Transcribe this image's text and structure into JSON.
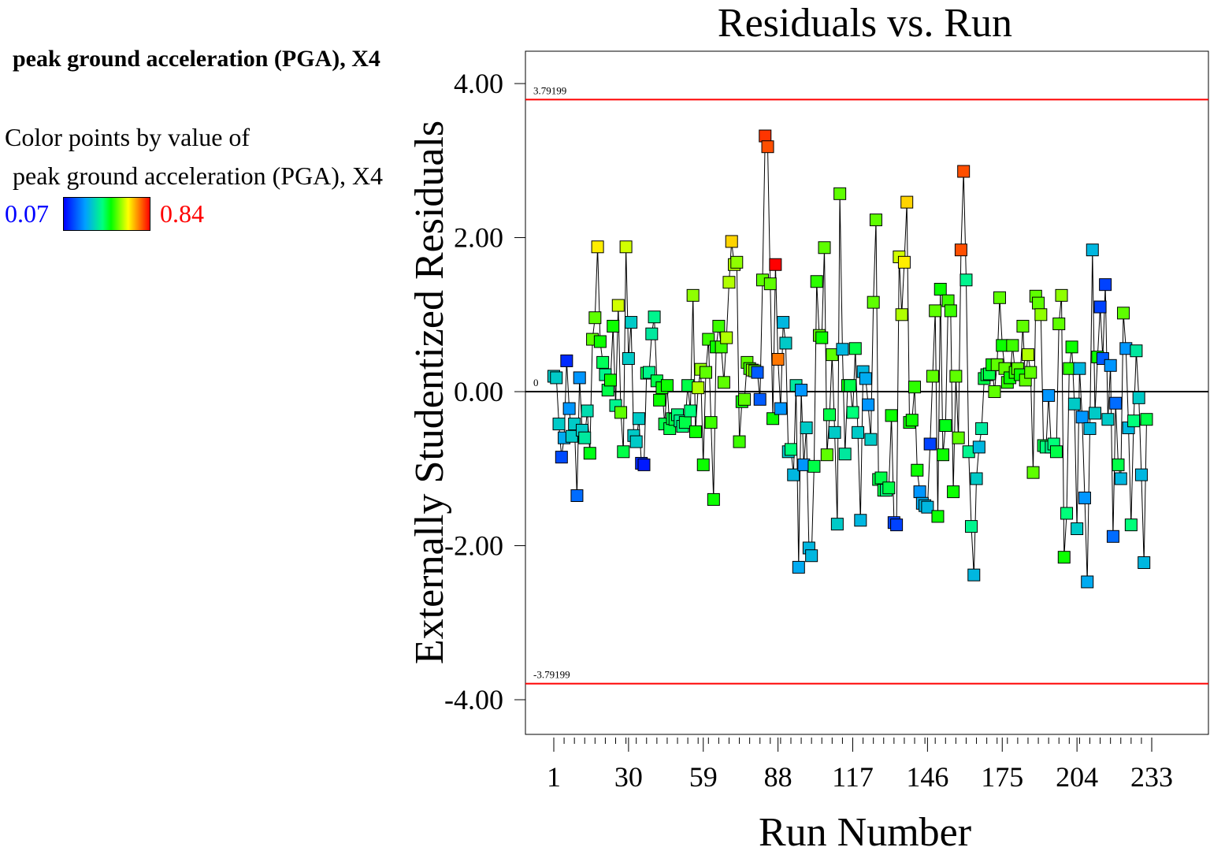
{
  "sidebar": {
    "title": "peak ground acceleration (PGA), X4",
    "color_by_label": "Color points by value of",
    "color_by_variable": "peak ground acceleration (PGA), X4",
    "legend_min": "0.07",
    "legend_max": "0.84",
    "legend_min_color": "#0000ff",
    "legend_max_color": "#ff0000"
  },
  "chart_data": {
    "type": "scatter",
    "title": "Residuals vs. Run",
    "xlabel": "Run Number",
    "ylabel": "Externally Studentized Residuals",
    "xlim": [
      -10,
      255
    ],
    "ylim": [
      -4.45,
      4.42
    ],
    "x_ticks": [
      1,
      30,
      59,
      88,
      117,
      146,
      175,
      204,
      233
    ],
    "y_ticks": [
      {
        "value": 4,
        "label": "4.00"
      },
      {
        "value": 2,
        "label": "2.00"
      },
      {
        "value": 0,
        "label": "0.00"
      },
      {
        "value": -2,
        "label": "-2.00"
      },
      {
        "value": -4,
        "label": "-4.00"
      }
    ],
    "reference_lines": [
      {
        "value": 3.79199,
        "label": "3.79199",
        "color": "#ff0000"
      },
      {
        "value": -3.79199,
        "label": "-3.79199",
        "color": "#ff0000"
      },
      {
        "value": 0,
        "label": "0",
        "color": "#000000"
      }
    ],
    "color_range": [
      0.07,
      0.84
    ],
    "series": [
      {
        "name": "residuals",
        "points": [
          [
            1,
            0.2,
            0.33
          ],
          [
            2,
            0.18,
            0.33
          ],
          [
            3,
            -0.42,
            0.33
          ],
          [
            4,
            -0.85,
            0.16
          ],
          [
            5,
            -0.6,
            0.28
          ],
          [
            6,
            0.4,
            0.12
          ],
          [
            7,
            -0.22,
            0.25
          ],
          [
            8,
            -0.58,
            0.33
          ],
          [
            9,
            -0.42,
            0.33
          ],
          [
            10,
            -1.35,
            0.2
          ],
          [
            11,
            0.18,
            0.25
          ],
          [
            12,
            -0.5,
            0.33
          ],
          [
            13,
            -0.6,
            0.38
          ],
          [
            14,
            -0.25,
            0.36
          ],
          [
            15,
            -0.8,
            0.48
          ],
          [
            16,
            0.68,
            0.55
          ],
          [
            17,
            0.96,
            0.55
          ],
          [
            18,
            1.88,
            0.66
          ],
          [
            19,
            0.65,
            0.5
          ],
          [
            20,
            0.38,
            0.44
          ],
          [
            21,
            0.22,
            0.4
          ],
          [
            22,
            0.02,
            0.45
          ],
          [
            23,
            0.15,
            0.5
          ],
          [
            24,
            0.85,
            0.5
          ],
          [
            25,
            -0.18,
            0.4
          ],
          [
            26,
            1.12,
            0.62
          ],
          [
            27,
            -0.27,
            0.55
          ],
          [
            28,
            -0.78,
            0.45
          ],
          [
            29,
            1.88,
            0.62
          ],
          [
            30,
            0.43,
            0.33
          ],
          [
            31,
            0.9,
            0.33
          ],
          [
            32,
            -0.57,
            0.33
          ],
          [
            33,
            -0.65,
            0.33
          ],
          [
            34,
            -0.35,
            0.33
          ],
          [
            35,
            -0.93,
            0.12
          ],
          [
            36,
            -0.95,
            0.1
          ],
          [
            37,
            0.24,
            0.45
          ],
          [
            38,
            0.25,
            0.4
          ],
          [
            39,
            0.75,
            0.38
          ],
          [
            40,
            0.97,
            0.4
          ],
          [
            41,
            0.14,
            0.45
          ],
          [
            42,
            -0.11,
            0.5
          ],
          [
            43,
            0.05,
            0.5
          ],
          [
            44,
            -0.42,
            0.45
          ],
          [
            45,
            0.08,
            0.5
          ],
          [
            46,
            -0.48,
            0.45
          ],
          [
            47,
            -0.35,
            0.45
          ],
          [
            48,
            -0.36,
            0.45
          ],
          [
            49,
            -0.3,
            0.42
          ],
          [
            50,
            -0.38,
            0.4
          ],
          [
            51,
            -0.45,
            0.42
          ],
          [
            52,
            -0.4,
            0.45
          ],
          [
            53,
            0.08,
            0.45
          ],
          [
            54,
            -0.25,
            0.42
          ],
          [
            55,
            1.25,
            0.58
          ],
          [
            56,
            -0.52,
            0.5
          ],
          [
            57,
            0.05,
            0.6
          ],
          [
            58,
            0.29,
            0.58
          ],
          [
            59,
            -0.95,
            0.5
          ],
          [
            60,
            0.25,
            0.55
          ],
          [
            61,
            0.68,
            0.53
          ],
          [
            62,
            -0.4,
            0.53
          ],
          [
            63,
            -1.4,
            0.5
          ],
          [
            64,
            0.58,
            0.5
          ],
          [
            65,
            0.85,
            0.53
          ],
          [
            66,
            0.58,
            0.53
          ],
          [
            67,
            0.12,
            0.55
          ],
          [
            68,
            0.7,
            0.6
          ],
          [
            69,
            1.42,
            0.6
          ],
          [
            70,
            1.95,
            0.68
          ],
          [
            71,
            1.65,
            0.6
          ],
          [
            72,
            1.68,
            0.58
          ],
          [
            73,
            -0.65,
            0.53
          ],
          [
            74,
            -0.13,
            0.5
          ],
          [
            75,
            -0.1,
            0.55
          ],
          [
            76,
            0.38,
            0.55
          ],
          [
            77,
            0.3,
            0.53
          ],
          [
            78,
            0.28,
            0.58
          ],
          [
            79,
            0.27,
            0.55
          ],
          [
            80,
            0.25,
            0.18
          ],
          [
            81,
            -0.1,
            0.18
          ],
          [
            82,
            1.45,
            0.55
          ],
          [
            83,
            3.32,
            0.8
          ],
          [
            84,
            3.18,
            0.78
          ],
          [
            85,
            1.4,
            0.55
          ],
          [
            86,
            -0.35,
            0.5
          ],
          [
            87,
            1.65,
            0.84
          ],
          [
            88,
            0.42,
            0.75
          ],
          [
            89,
            -0.22,
            0.25
          ],
          [
            90,
            0.9,
            0.3
          ],
          [
            91,
            0.63,
            0.33
          ],
          [
            92,
            -0.78,
            0.33
          ],
          [
            93,
            -0.75,
            0.42
          ],
          [
            94,
            -1.08,
            0.3
          ],
          [
            95,
            0.08,
            0.38
          ],
          [
            96,
            -2.28,
            0.28
          ],
          [
            97,
            0.02,
            0.25
          ],
          [
            98,
            -0.95,
            0.25
          ],
          [
            99,
            -0.47,
            0.33
          ],
          [
            100,
            -2.03,
            0.3
          ],
          [
            101,
            -2.13,
            0.3
          ],
          [
            102,
            -0.97,
            0.45
          ],
          [
            103,
            1.43,
            0.52
          ],
          [
            104,
            0.73,
            0.55
          ],
          [
            105,
            0.7,
            0.5
          ],
          [
            106,
            1.87,
            0.55
          ],
          [
            107,
            -0.82,
            0.55
          ],
          [
            108,
            -0.3,
            0.45
          ],
          [
            109,
            0.48,
            0.55
          ],
          [
            110,
            -0.53,
            0.33
          ],
          [
            111,
            -1.72,
            0.33
          ],
          [
            112,
            2.57,
            0.55
          ],
          [
            113,
            0.55,
            0.3
          ],
          [
            114,
            -0.81,
            0.38
          ],
          [
            115,
            0.08,
            0.5
          ],
          [
            116,
            0.08,
            0.45
          ],
          [
            117,
            -0.27,
            0.42
          ],
          [
            118,
            0.56,
            0.45
          ],
          [
            119,
            -0.53,
            0.33
          ],
          [
            120,
            -1.67,
            0.3
          ],
          [
            121,
            0.26,
            0.3
          ],
          [
            122,
            0.17,
            0.28
          ],
          [
            123,
            -0.17,
            0.25
          ],
          [
            124,
            -0.62,
            0.33
          ],
          [
            125,
            1.16,
            0.55
          ],
          [
            126,
            2.23,
            0.55
          ],
          [
            127,
            -1.14,
            0.45
          ],
          [
            128,
            -1.12,
            0.45
          ],
          [
            129,
            -1.28,
            0.45
          ],
          [
            130,
            -1.28,
            0.42
          ],
          [
            131,
            -1.25,
            0.45
          ],
          [
            132,
            -0.31,
            0.5
          ],
          [
            133,
            -1.7,
            0.15
          ],
          [
            134,
            -1.73,
            0.15
          ],
          [
            135,
            1.75,
            0.62
          ],
          [
            136,
            1.0,
            0.6
          ],
          [
            137,
            1.68,
            0.66
          ],
          [
            138,
            2.46,
            0.68
          ],
          [
            139,
            -0.4,
            0.5
          ],
          [
            140,
            -0.37,
            0.5
          ],
          [
            141,
            0.06,
            0.52
          ],
          [
            142,
            -1.02,
            0.5
          ],
          [
            143,
            -1.3,
            0.25
          ],
          [
            144,
            -1.45,
            0.28
          ],
          [
            145,
            -1.48,
            0.3
          ],
          [
            146,
            -1.5,
            0.3
          ],
          [
            147,
            -0.68,
            0.15
          ],
          [
            148,
            0.2,
            0.55
          ],
          [
            149,
            1.05,
            0.55
          ],
          [
            150,
            -1.62,
            0.5
          ],
          [
            151,
            1.33,
            0.5
          ],
          [
            152,
            -0.82,
            0.5
          ],
          [
            153,
            -0.44,
            0.48
          ],
          [
            154,
            1.18,
            0.53
          ],
          [
            155,
            1.05,
            0.53
          ],
          [
            156,
            -1.3,
            0.5
          ],
          [
            157,
            0.2,
            0.55
          ],
          [
            158,
            -0.6,
            0.55
          ],
          [
            159,
            1.84,
            0.78
          ],
          [
            160,
            2.86,
            0.78
          ],
          [
            161,
            1.45,
            0.4
          ],
          [
            162,
            -0.78,
            0.4
          ],
          [
            163,
            -1.75,
            0.4
          ],
          [
            164,
            -2.38,
            0.3
          ],
          [
            165,
            -1.13,
            0.33
          ],
          [
            166,
            -0.72,
            0.3
          ],
          [
            167,
            -0.48,
            0.38
          ],
          [
            168,
            0.17,
            0.45
          ],
          [
            169,
            0.22,
            0.45
          ],
          [
            170,
            0.23,
            0.45
          ],
          [
            171,
            0.35,
            0.5
          ],
          [
            172,
            0.0,
            0.55
          ],
          [
            173,
            0.35,
            0.55
          ],
          [
            174,
            1.22,
            0.55
          ],
          [
            175,
            0.6,
            0.5
          ],
          [
            176,
            0.3,
            0.55
          ],
          [
            177,
            0.12,
            0.52
          ],
          [
            178,
            0.18,
            0.5
          ],
          [
            179,
            0.6,
            0.53
          ],
          [
            180,
            0.25,
            0.52
          ],
          [
            181,
            0.3,
            0.55
          ],
          [
            182,
            0.22,
            0.5
          ],
          [
            183,
            0.85,
            0.55
          ],
          [
            184,
            0.15,
            0.55
          ],
          [
            185,
            0.48,
            0.6
          ],
          [
            186,
            0.25,
            0.55
          ],
          [
            187,
            -1.05,
            0.55
          ],
          [
            188,
            1.24,
            0.55
          ],
          [
            189,
            1.15,
            0.55
          ],
          [
            190,
            1.0,
            0.58
          ],
          [
            191,
            -0.7,
            0.45
          ],
          [
            192,
            -0.72,
            0.42
          ],
          [
            193,
            -0.05,
            0.25
          ],
          [
            194,
            -0.72,
            0.4
          ],
          [
            195,
            -0.68,
            0.42
          ],
          [
            196,
            -0.78,
            0.45
          ],
          [
            197,
            0.88,
            0.55
          ],
          [
            198,
            1.25,
            0.58
          ],
          [
            199,
            -2.15,
            0.5
          ],
          [
            200,
            -1.58,
            0.42
          ],
          [
            201,
            0.3,
            0.52
          ],
          [
            202,
            0.58,
            0.5
          ],
          [
            203,
            -0.16,
            0.33
          ],
          [
            204,
            -1.78,
            0.33
          ],
          [
            205,
            0.3,
            0.3
          ],
          [
            206,
            -0.33,
            0.25
          ],
          [
            207,
            -1.38,
            0.25
          ],
          [
            208,
            -2.47,
            0.28
          ],
          [
            209,
            -0.48,
            0.3
          ],
          [
            210,
            1.84,
            0.3
          ],
          [
            211,
            -0.28,
            0.33
          ],
          [
            212,
            0.45,
            0.5
          ],
          [
            213,
            1.1,
            0.15
          ],
          [
            214,
            0.43,
            0.18
          ],
          [
            215,
            1.39,
            0.15
          ],
          [
            216,
            -0.36,
            0.33
          ],
          [
            217,
            0.34,
            0.25
          ],
          [
            218,
            -1.88,
            0.2
          ],
          [
            219,
            -0.15,
            0.2
          ],
          [
            220,
            -0.95,
            0.45
          ],
          [
            221,
            -1.13,
            0.3
          ],
          [
            222,
            1.02,
            0.55
          ],
          [
            223,
            0.56,
            0.25
          ],
          [
            224,
            -0.47,
            0.3
          ],
          [
            225,
            -1.73,
            0.42
          ],
          [
            226,
            -0.38,
            0.42
          ],
          [
            227,
            0.53,
            0.38
          ],
          [
            228,
            -0.08,
            0.33
          ],
          [
            229,
            -1.08,
            0.3
          ],
          [
            230,
            -2.22,
            0.3
          ],
          [
            231,
            -0.36,
            0.45
          ]
        ]
      }
    ]
  }
}
